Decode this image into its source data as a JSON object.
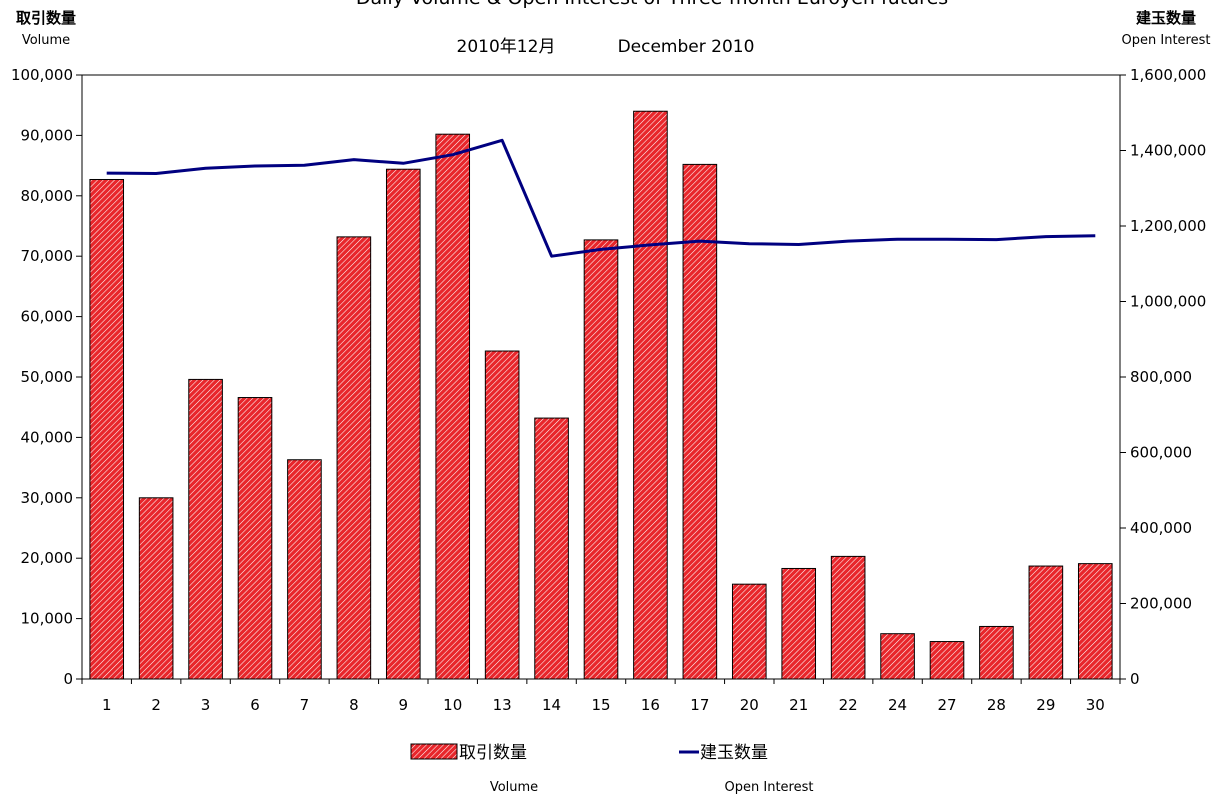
{
  "chart_data": {
    "type": "bar+line",
    "title": "Daily Volume & Open Interest of Three-month Euroyen futures",
    "subtitle_jp": "2010年12月",
    "subtitle_en": "December 2010",
    "left_axis": {
      "label_jp": "取引数量",
      "label_en": "Volume",
      "range": [
        0,
        100000
      ],
      "step": 10000,
      "ticks": [
        "0",
        "10,000",
        "20,000",
        "30,000",
        "40,000",
        "50,000",
        "60,000",
        "70,000",
        "80,000",
        "90,000",
        "100,000"
      ]
    },
    "right_axis": {
      "label_jp": "建玉数量",
      "label_en": "Open Interest",
      "range": [
        0,
        1600000
      ],
      "step": 200000,
      "ticks": [
        "0",
        "200,000",
        "400,000",
        "600,000",
        "800,000",
        "1,000,000",
        "1,200,000",
        "1,400,000",
        "1,600,000"
      ]
    },
    "categories": [
      "1",
      "2",
      "3",
      "6",
      "7",
      "8",
      "9",
      "10",
      "13",
      "14",
      "15",
      "16",
      "17",
      "20",
      "21",
      "22",
      "24",
      "27",
      "28",
      "29",
      "30"
    ],
    "series": [
      {
        "name": "取引数量",
        "name_en": "Volume",
        "type": "bar",
        "axis": "left",
        "color": "#e8262b",
        "values": [
          82700,
          30000,
          49600,
          46600,
          36300,
          73200,
          84400,
          90200,
          54300,
          43200,
          72700,
          94000,
          85200,
          15700,
          18300,
          20300,
          7500,
          6200,
          8700,
          18700,
          19100
        ]
      },
      {
        "name": "建玉数量",
        "name_en": "Open Interest",
        "type": "line",
        "axis": "right",
        "color": "#000080",
        "values": [
          1340000,
          1339000,
          1353000,
          1359000,
          1361000,
          1376000,
          1366000,
          1389000,
          1427000,
          1120000,
          1138000,
          1150000,
          1160000,
          1153000,
          1151000,
          1160000,
          1165000,
          1165000,
          1164000,
          1172000,
          1174000
        ]
      }
    ],
    "grid": true,
    "legend": "bottom-center"
  }
}
